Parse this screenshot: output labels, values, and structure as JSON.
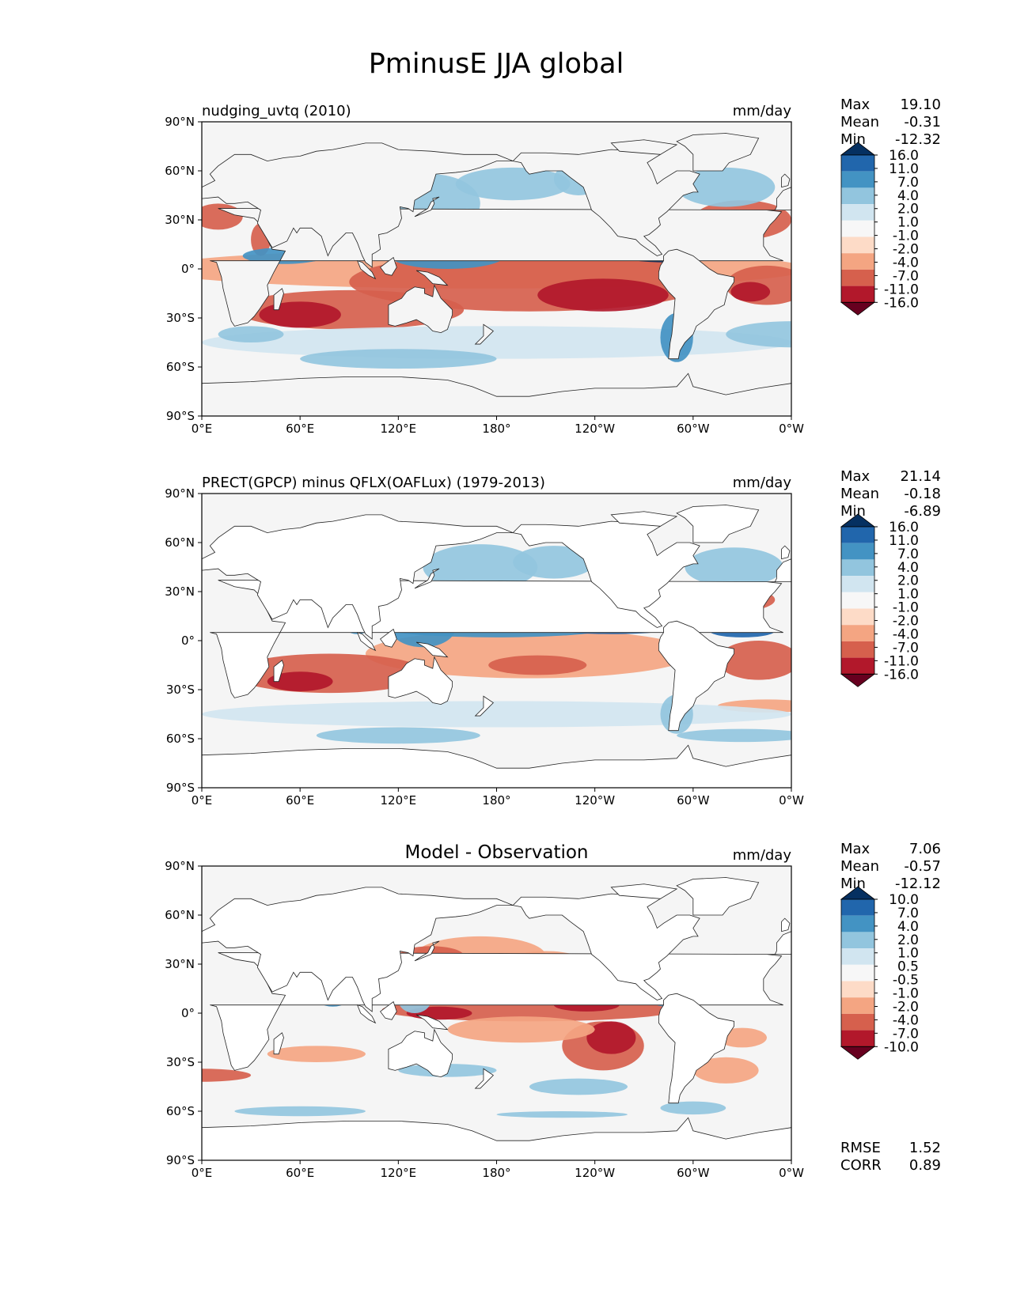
{
  "figure": {
    "title": "PminusE JJA global"
  },
  "chart_data": [
    {
      "type": "heatmap",
      "title_left": "nudging_uvtq (2010)",
      "title_center": "",
      "units": "mm/day",
      "stats": [
        {
          "label": "Max",
          "value": "19.10"
        },
        {
          "label": "Mean",
          "value": "-0.31"
        },
        {
          "label": "Min",
          "value": "-12.32"
        }
      ],
      "colorbar": {
        "ticks": [
          "16.0",
          "11.0",
          "7.0",
          "4.0",
          "2.0",
          "1.0",
          "-1.0",
          "-2.0",
          "-4.0",
          "-7.0",
          "-11.0",
          "-16.0"
        ],
        "colors": [
          "#053061",
          "#2166ac",
          "#4393c3",
          "#92c5de",
          "#d1e5f0",
          "#f7f7f7",
          "#fddbc7",
          "#f4a582",
          "#d6604d",
          "#b2182b",
          "#67001f"
        ],
        "extend": "both"
      },
      "xticks": [
        "0°E",
        "60°E",
        "120°E",
        "180°",
        "120°W",
        "60°W",
        "0°W"
      ],
      "yticks": [
        "90°N",
        "60°N",
        "30°N",
        "0°",
        "30°S",
        "60°S",
        "90°S"
      ],
      "extra_stats": []
    },
    {
      "type": "heatmap",
      "title_left": "PRECT(GPCP) minus QFLX(OAFLux) (1979-2013)",
      "title_center": "",
      "units": "mm/day",
      "stats": [
        {
          "label": "Max",
          "value": "21.14"
        },
        {
          "label": "Mean",
          "value": "-0.18"
        },
        {
          "label": "Min",
          "value": "-6.89"
        }
      ],
      "colorbar": {
        "ticks": [
          "16.0",
          "11.0",
          "7.0",
          "4.0",
          "2.0",
          "1.0",
          "-1.0",
          "-2.0",
          "-4.0",
          "-7.0",
          "-11.0",
          "-16.0"
        ],
        "colors": [
          "#053061",
          "#2166ac",
          "#4393c3",
          "#92c5de",
          "#d1e5f0",
          "#f7f7f7",
          "#fddbc7",
          "#f4a582",
          "#d6604d",
          "#b2182b",
          "#67001f"
        ],
        "extend": "both"
      },
      "xticks": [
        "0°E",
        "60°E",
        "120°E",
        "180°",
        "120°W",
        "60°W",
        "0°W"
      ],
      "yticks": [
        "90°N",
        "60°N",
        "30°N",
        "0°",
        "30°S",
        "60°S",
        "90°S"
      ],
      "extra_stats": []
    },
    {
      "type": "heatmap",
      "title_left": "",
      "title_center": "Model - Observation",
      "units": "mm/day",
      "stats": [
        {
          "label": "Max",
          "value": "7.06"
        },
        {
          "label": "Mean",
          "value": "-0.57"
        },
        {
          "label": "Min",
          "value": "-12.12"
        }
      ],
      "colorbar": {
        "ticks": [
          "10.0",
          "7.0",
          "4.0",
          "2.0",
          "1.0",
          "0.5",
          "-0.5",
          "-1.0",
          "-2.0",
          "-4.0",
          "-7.0",
          "-10.0"
        ],
        "colors": [
          "#053061",
          "#2166ac",
          "#4393c3",
          "#92c5de",
          "#d1e5f0",
          "#f7f7f7",
          "#fddbc7",
          "#f4a582",
          "#d6604d",
          "#b2182b",
          "#67001f"
        ],
        "extend": "both"
      },
      "xticks": [
        "0°E",
        "60°E",
        "120°E",
        "180°",
        "120°W",
        "60°W",
        "0°W"
      ],
      "yticks": [
        "90°N",
        "60°N",
        "30°N",
        "0°",
        "30°S",
        "60°S",
        "90°S"
      ],
      "extra_stats": [
        {
          "label": "RMSE",
          "value": "1.52"
        },
        {
          "label": "CORR",
          "value": "0.89"
        }
      ]
    }
  ]
}
